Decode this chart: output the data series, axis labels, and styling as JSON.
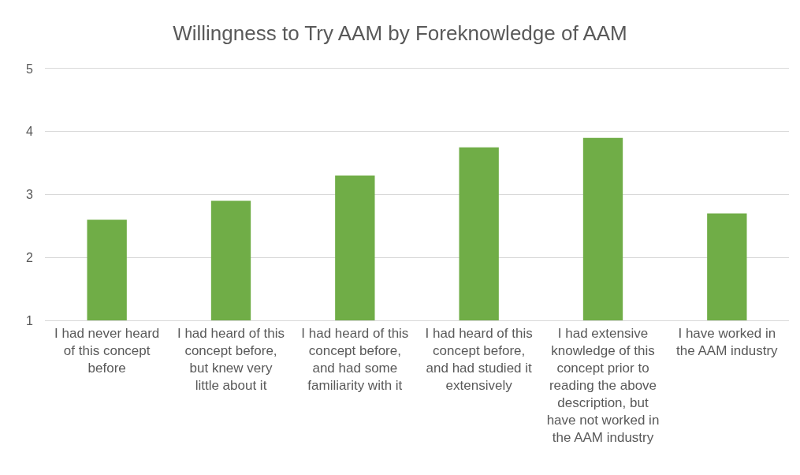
{
  "chart_data": {
    "type": "bar",
    "title": "Willingness to Try AAM by Foreknowledge of AAM",
    "categories": [
      "I had never heard\nof this concept\nbefore",
      "I had heard of this\nconcept before,\nbut knew very\nlittle about it",
      "I had heard of this\nconcept before,\nand had some\nfamiliarity with it",
      "I had heard of this\nconcept before,\nand had studied it\nextensively",
      "I had extensive\nknowledge of this\nconcept prior to\nreading the above\ndescription, but\nhave not worked in\nthe AAM industry",
      "I have worked in\nthe AAM industry"
    ],
    "values": [
      2.6,
      2.9,
      3.3,
      3.75,
      3.9,
      2.7
    ],
    "color": "#70ad47",
    "ylim": [
      1,
      5
    ],
    "yticks": [
      1,
      2,
      3,
      4,
      5
    ],
    "grid": "y"
  }
}
